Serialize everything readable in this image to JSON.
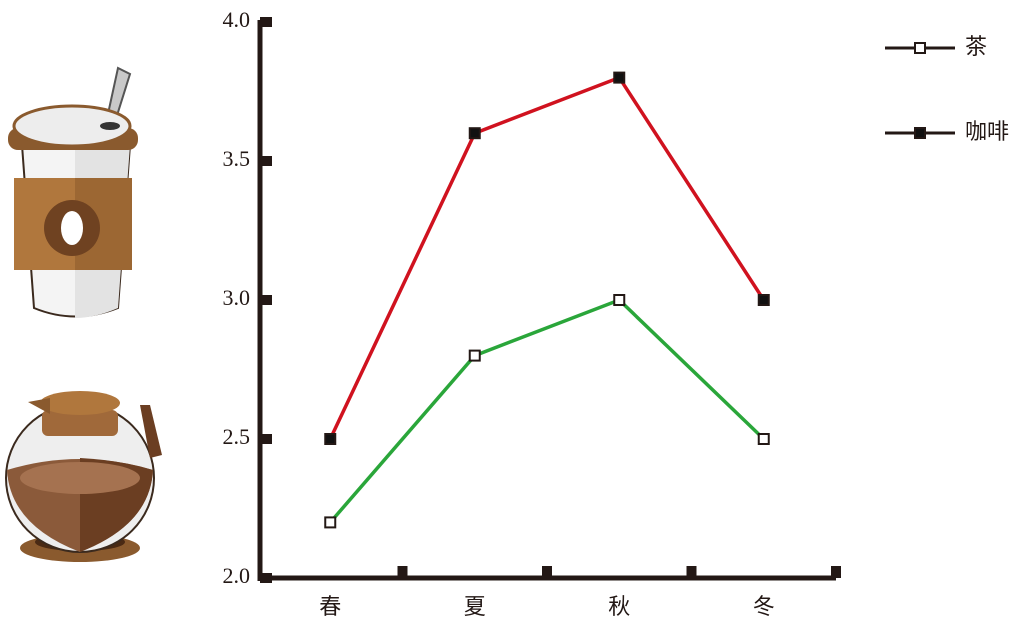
{
  "chart_data": {
    "type": "line",
    "categories": [
      "春",
      "夏",
      "秋",
      "冬"
    ],
    "series": [
      {
        "name": "茶",
        "color": "#2aa63a",
        "marker_fill": "#ffffff",
        "values": [
          2.2,
          2.8,
          3.0,
          2.5
        ]
      },
      {
        "name": "咖啡",
        "color": "#d0121f",
        "marker_fill": "#111111",
        "values": [
          2.5,
          3.6,
          3.8,
          3.0
        ]
      }
    ],
    "ylim": [
      2.0,
      4.0
    ],
    "yticks": [
      {
        "value": 2,
        "label": "2.0"
      },
      2.5,
      {
        "value": 3,
        "label": "3.0"
      },
      3.5,
      {
        "value": 4,
        "label": "4.0"
      }
    ],
    "legend": "upper right"
  }
}
